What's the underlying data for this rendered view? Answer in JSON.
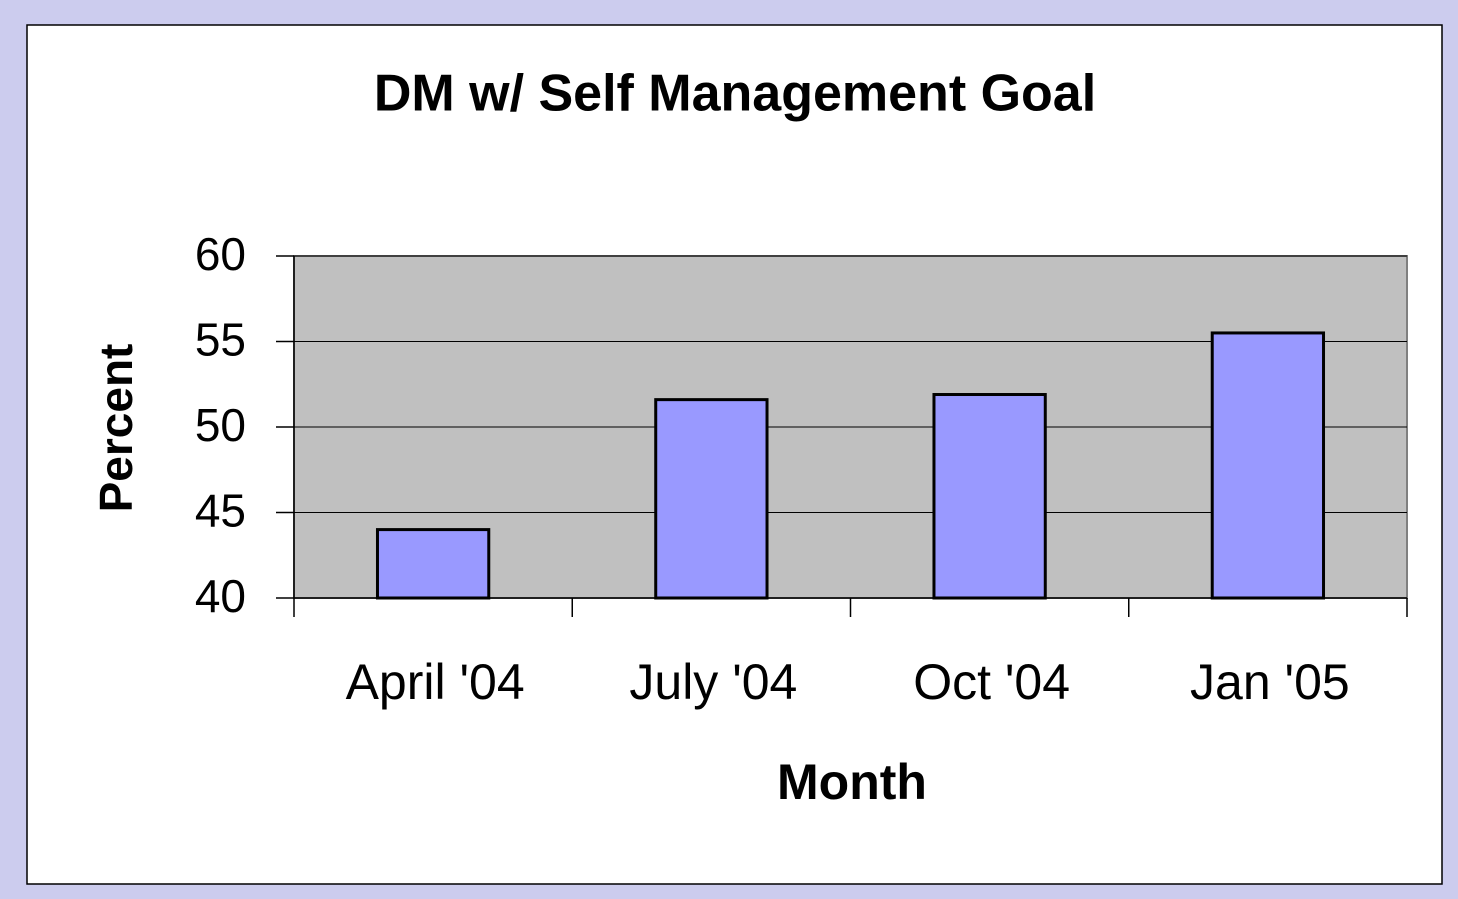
{
  "chart_data": {
    "type": "bar",
    "title": "DM w/ Self Management Goal",
    "x_label": "Month",
    "y_label": "Percent",
    "categories": [
      "April '04",
      "July '04",
      "Oct '04",
      "Jan '05"
    ],
    "values": [
      44.0,
      51.6,
      51.9,
      55.5
    ],
    "color": "#9999ff",
    "ylim": [
      40,
      60
    ],
    "yticks": [
      40,
      45,
      50,
      55,
      60
    ],
    "grid": true
  }
}
